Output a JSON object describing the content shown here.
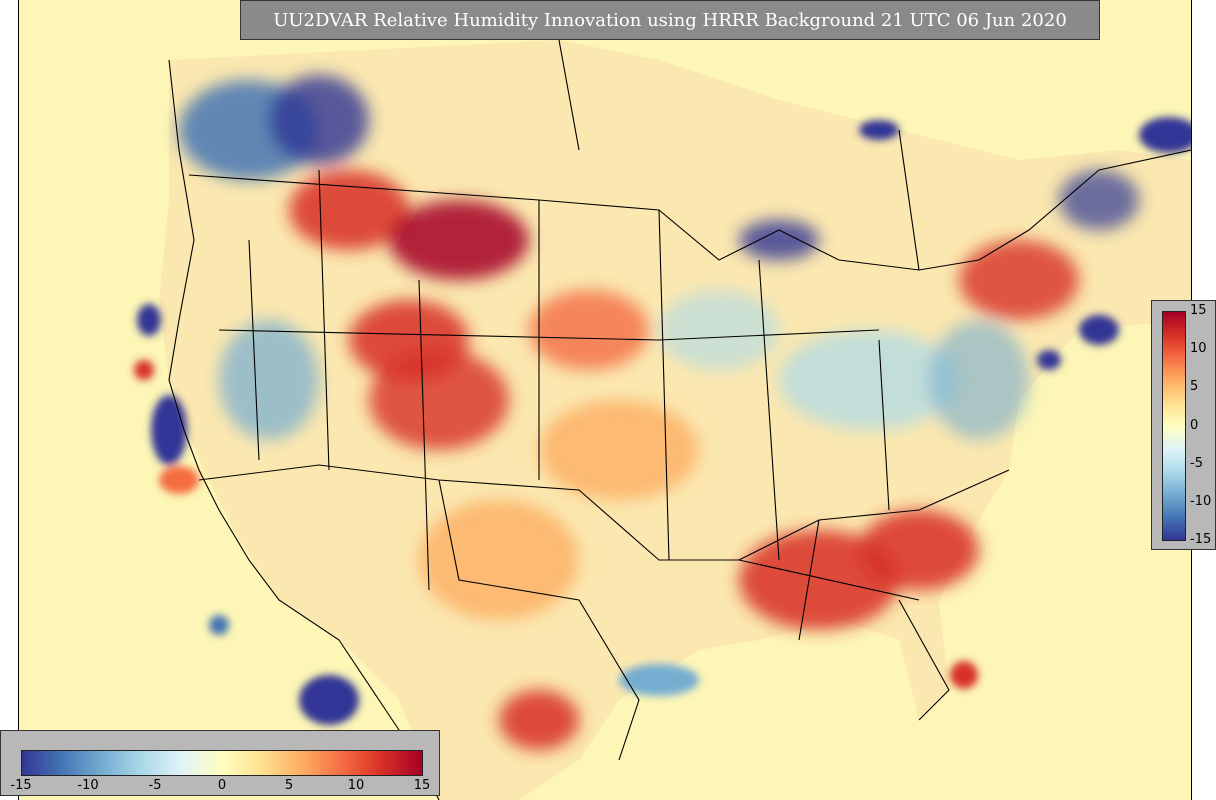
{
  "title": "UU2DVAR Relative Humidity Innovation using HRRR Background 21 UTC 06 Jun 2020",
  "colorbar_right": {
    "ticks": [
      "15",
      "10",
      "5",
      "0",
      "-5",
      "-10",
      "-15"
    ]
  },
  "colorbar_bottom": {
    "ticks": [
      "-15",
      "-10",
      "-5",
      "0",
      "5",
      "10",
      "15"
    ]
  },
  "colors": {
    "ocean": "#fdf6b6",
    "neg_strong": "#313695",
    "pos_strong": "#a50026",
    "neutral": "#ffffbf"
  }
}
